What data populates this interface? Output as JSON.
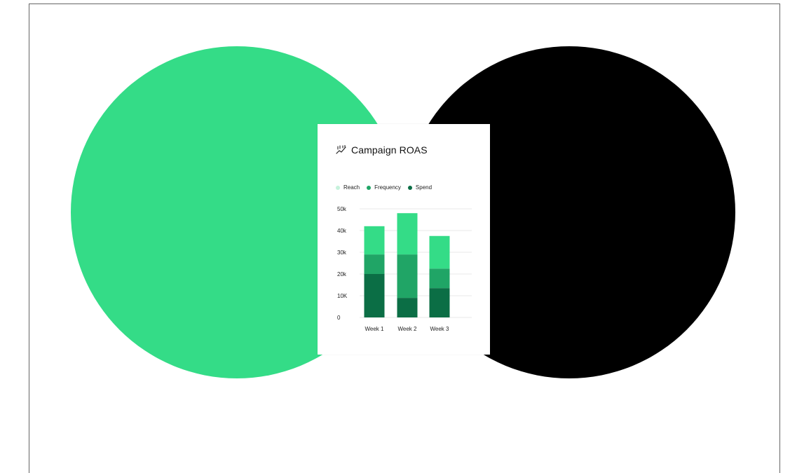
{
  "colors": {
    "left_circle": "#34DC87",
    "right_circle": "#000000",
    "reach": "#34DC87",
    "frequency": "#20A566",
    "spend": "#0B6E45",
    "reach_legend_dot": "#C6F2DC",
    "gridline": "#E3E3E3"
  },
  "card": {
    "icon": "chart-trend-icon",
    "title": "Campaign ROAS"
  },
  "chart_data": {
    "type": "bar",
    "stacked": true,
    "title": "Campaign ROAS",
    "categories": [
      "Week 1",
      "Week 2",
      "Week 3"
    ],
    "series": [
      {
        "name": "Spend",
        "values": [
          20,
          9,
          13.5
        ]
      },
      {
        "name": "Frequency",
        "values": [
          9,
          20,
          9
        ]
      },
      {
        "name": "Reach",
        "values": [
          13,
          19,
          15
        ]
      }
    ],
    "yticks": [
      "0",
      "10K",
      "20k",
      "30k",
      "40k",
      "50k"
    ],
    "ylim": [
      0,
      50
    ],
    "legend": [
      "Reach",
      "Frequency",
      "Spend"
    ],
    "legend_position": "top-left",
    "grid": true
  }
}
